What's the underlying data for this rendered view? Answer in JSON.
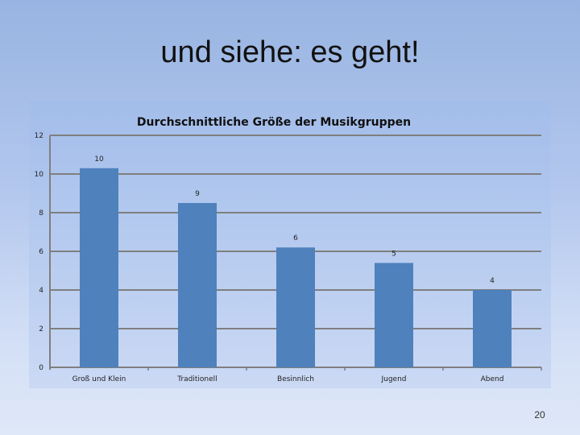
{
  "slide": {
    "title": "und siehe: es geht!",
    "page_number": "20"
  },
  "chart_data": {
    "type": "bar",
    "title": "Durchschnittliche Größe der Musikgruppen",
    "categories": [
      "Groß und Klein",
      "Traditionell",
      "Besinnlich",
      "Jugend",
      "Abend"
    ],
    "values": [
      10.3,
      8.5,
      6.2,
      5.4,
      4
    ],
    "data_labels": [
      "10",
      "9",
      "6",
      "5",
      "4"
    ],
    "yticks": [
      "0",
      "2",
      "4",
      "6",
      "8",
      "10",
      "12"
    ],
    "ylim": [
      0,
      12
    ],
    "xlabel": "",
    "ylabel": "",
    "grid": true,
    "legend": "none",
    "bar_color": "#4f81bd",
    "grid_color": "#7f7f7f"
  }
}
